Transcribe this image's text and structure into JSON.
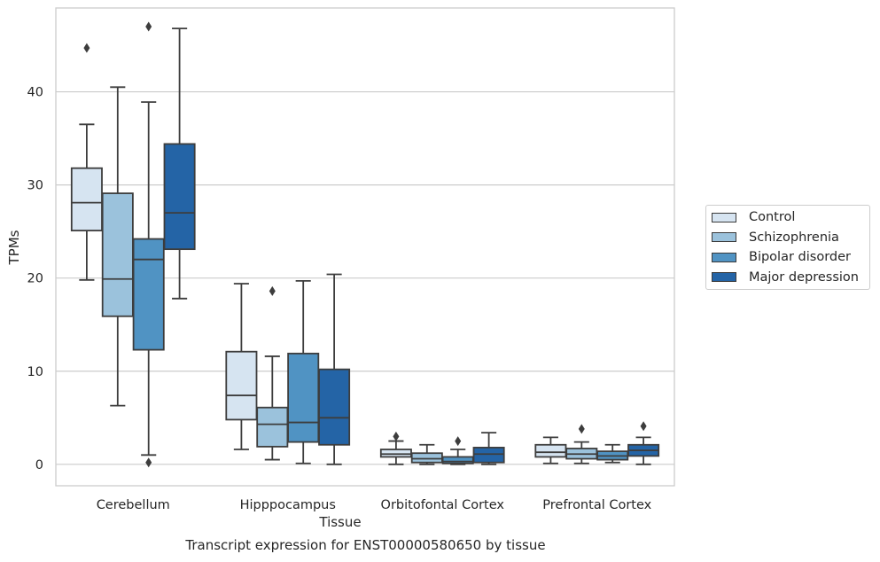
{
  "chart_data": {
    "type": "box",
    "xlabel": "Tissue",
    "ylabel": "TPMs",
    "ylim": [
      -2.3,
      49
    ],
    "yticks": [
      0,
      10,
      20,
      30,
      40
    ],
    "grid": true,
    "legend_position": "right",
    "categories": [
      "Cerebellum",
      "Hipppocampus",
      "Orbitofontal Cortex",
      "Prefrontal Cortex"
    ],
    "series": [
      {
        "name": "Control",
        "color": "#d6e4f1",
        "boxes": [
          {
            "whislo": 19.8,
            "q1": 25.1,
            "med": 28.1,
            "q3": 31.8,
            "whishi": 36.5,
            "fliers": [
              44.7
            ]
          },
          {
            "whislo": 1.6,
            "q1": 4.8,
            "med": 7.4,
            "q3": 12.1,
            "whishi": 19.4,
            "fliers": []
          },
          {
            "whislo": 0.0,
            "q1": 0.8,
            "med": 1.1,
            "q3": 1.6,
            "whishi": 2.5,
            "fliers": [
              3.0
            ]
          },
          {
            "whislo": 0.1,
            "q1": 0.8,
            "med": 1.3,
            "q3": 2.1,
            "whishi": 2.9,
            "fliers": []
          }
        ]
      },
      {
        "name": "Schizophrenia",
        "color": "#9bc2dc",
        "boxes": [
          {
            "whislo": 6.3,
            "q1": 15.9,
            "med": 19.9,
            "q3": 29.1,
            "whishi": 40.5,
            "fliers": []
          },
          {
            "whislo": 0.5,
            "q1": 1.9,
            "med": 4.3,
            "q3": 6.1,
            "whishi": 11.6,
            "fliers": [
              18.6
            ]
          },
          {
            "whislo": 0.0,
            "q1": 0.2,
            "med": 0.6,
            "q3": 1.2,
            "whishi": 2.1,
            "fliers": []
          },
          {
            "whislo": 0.1,
            "q1": 0.6,
            "med": 1.1,
            "q3": 1.7,
            "whishi": 2.4,
            "fliers": [
              3.8
            ]
          }
        ]
      },
      {
        "name": "Bipolar disorder",
        "color": "#5093c3",
        "boxes": [
          {
            "whislo": 1.0,
            "q1": 12.3,
            "med": 22.0,
            "q3": 24.2,
            "whishi": 38.9,
            "fliers": [
              0.2,
              47.0
            ]
          },
          {
            "whislo": 0.1,
            "q1": 2.4,
            "med": 4.5,
            "q3": 11.9,
            "whishi": 19.7,
            "fliers": []
          },
          {
            "whislo": 0.0,
            "q1": 0.1,
            "med": 0.3,
            "q3": 0.8,
            "whishi": 1.6,
            "fliers": [
              2.5
            ]
          },
          {
            "whislo": 0.2,
            "q1": 0.5,
            "med": 0.9,
            "q3": 1.4,
            "whishi": 2.1,
            "fliers": []
          }
        ]
      },
      {
        "name": "Major depression",
        "color": "#2464a6",
        "boxes": [
          {
            "whislo": 17.8,
            "q1": 23.1,
            "med": 27.0,
            "q3": 34.4,
            "whishi": 46.8,
            "fliers": []
          },
          {
            "whislo": 0.0,
            "q1": 2.1,
            "med": 5.0,
            "q3": 10.2,
            "whishi": 20.4,
            "fliers": []
          },
          {
            "whislo": 0.0,
            "q1": 0.2,
            "med": 1.1,
            "q3": 1.8,
            "whishi": 3.4,
            "fliers": []
          },
          {
            "whislo": 0.0,
            "q1": 0.9,
            "med": 1.5,
            "q3": 2.1,
            "whishi": 2.9,
            "fliers": [
              4.1
            ]
          }
        ]
      }
    ]
  },
  "caption": "Transcript expression for ENST00000580650 by tissue"
}
